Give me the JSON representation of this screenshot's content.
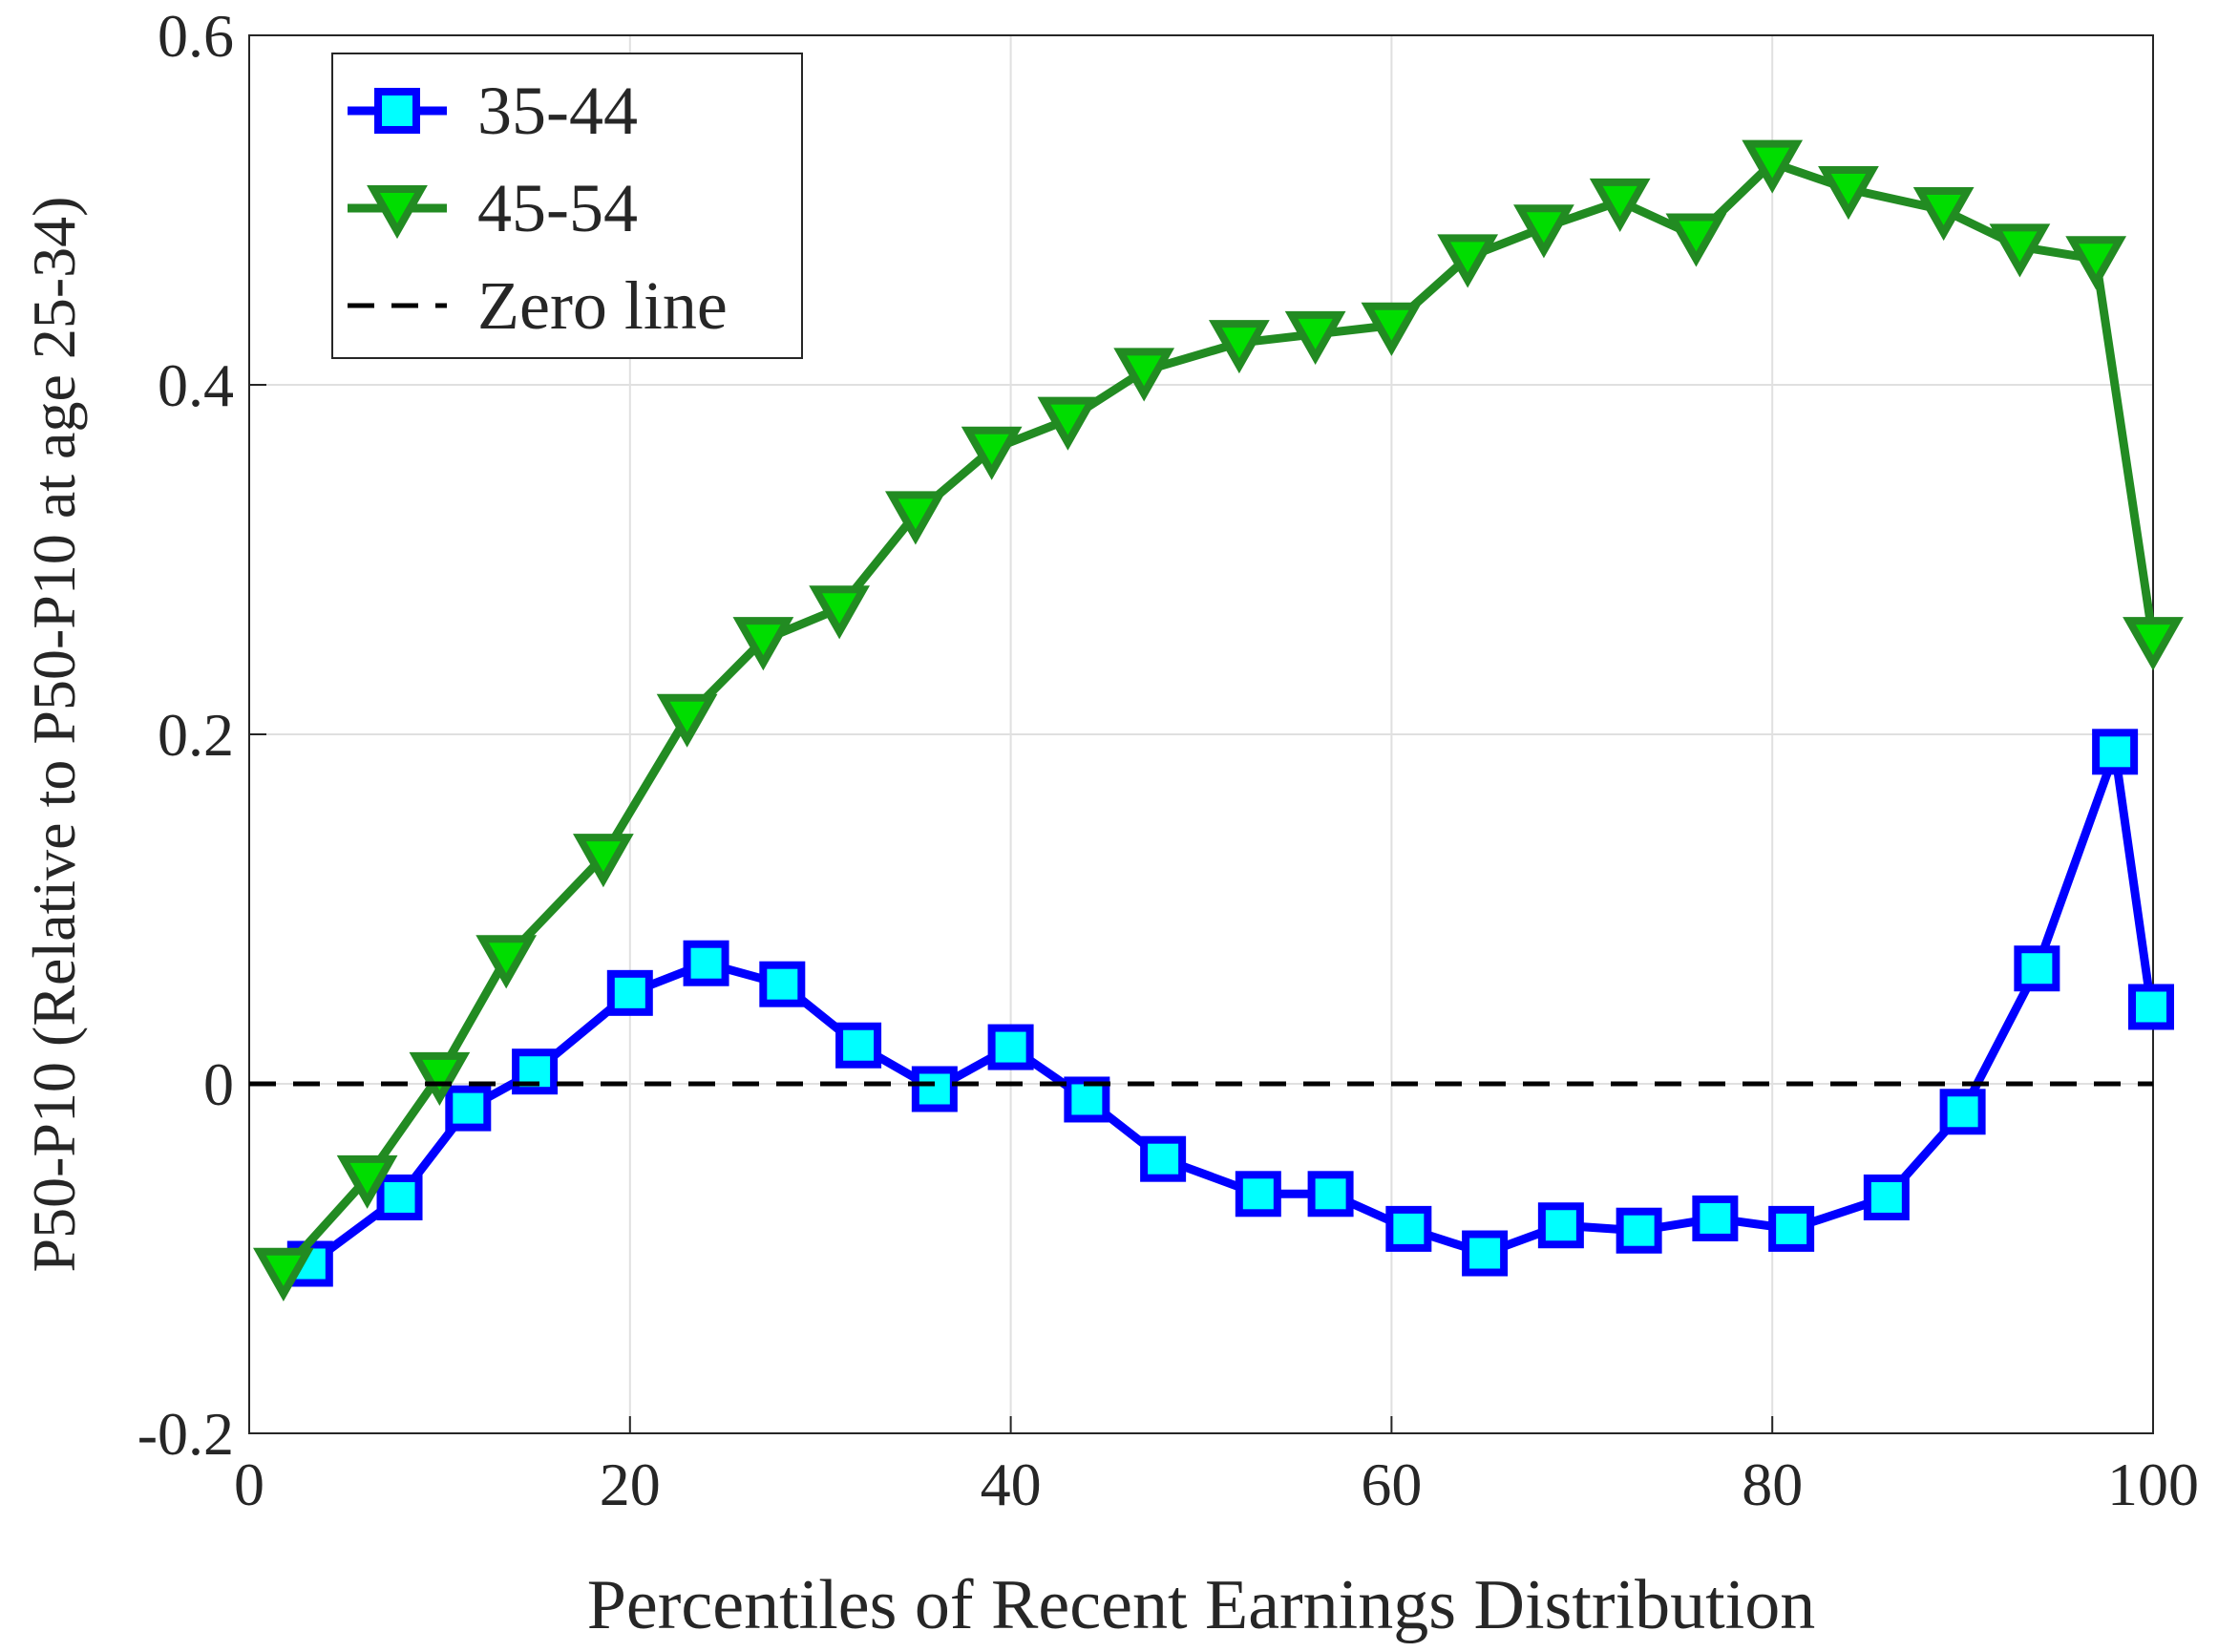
{
  "chart_data": {
    "type": "line",
    "xlabel": "Percentiles of Recent Earnings Distribution",
    "ylabel": "P50-P10 (Relative to P50-P10 at age 25-34)",
    "xlim": [
      0,
      100
    ],
    "xticks": [
      0,
      20,
      40,
      60,
      80,
      100
    ],
    "ylim": [
      -0.2,
      0.6
    ],
    "yticks": [
      -0.2,
      0,
      0.2,
      0.4,
      0.6
    ],
    "grid": true,
    "legend": "upper left",
    "series": [
      {
        "name": "35-44",
        "color": "#0000ff",
        "marker": "square",
        "marker_color": "#00ffff",
        "x": [
          3.2,
          7.9,
          11.5,
          15,
          20,
          24,
          28,
          32,
          36,
          40,
          44,
          48,
          53,
          56.8,
          60.9,
          64.9,
          68.9,
          73,
          77,
          81,
          86,
          90,
          93.9,
          98,
          99.9
        ],
        "values": [
          -0.103,
          -0.065,
          -0.014,
          0.007,
          0.052,
          0.069,
          0.057,
          0.022,
          -0.003,
          0.021,
          -0.009,
          -0.043,
          -0.063,
          -0.063,
          -0.083,
          -0.097,
          -0.081,
          -0.084,
          -0.077,
          -0.083,
          -0.065,
          -0.016,
          0.066,
          0.19,
          0.044
        ]
      },
      {
        "name": "45-54",
        "color": "#228b22",
        "marker": "triangle-down",
        "marker_color": "#00dd00",
        "x": [
          1.8,
          6.2,
          10,
          13.5,
          18.6,
          23,
          27,
          31,
          35,
          39,
          43,
          47,
          52,
          56,
          60,
          64,
          68,
          72,
          76,
          80,
          84,
          89,
          93,
          97,
          100
        ],
        "values": [
          -0.107,
          -0.054,
          0.005,
          0.072,
          0.13,
          0.21,
          0.254,
          0.272,
          0.326,
          0.363,
          0.38,
          0.408,
          0.424,
          0.429,
          0.434,
          0.473,
          0.49,
          0.505,
          0.485,
          0.527,
          0.512,
          0.5,
          0.479,
          0.472,
          0.254
        ]
      },
      {
        "name": "Zero line",
        "color": "#000000",
        "dash": true,
        "x": [
          0,
          100
        ],
        "values": [
          0,
          0
        ]
      }
    ]
  }
}
